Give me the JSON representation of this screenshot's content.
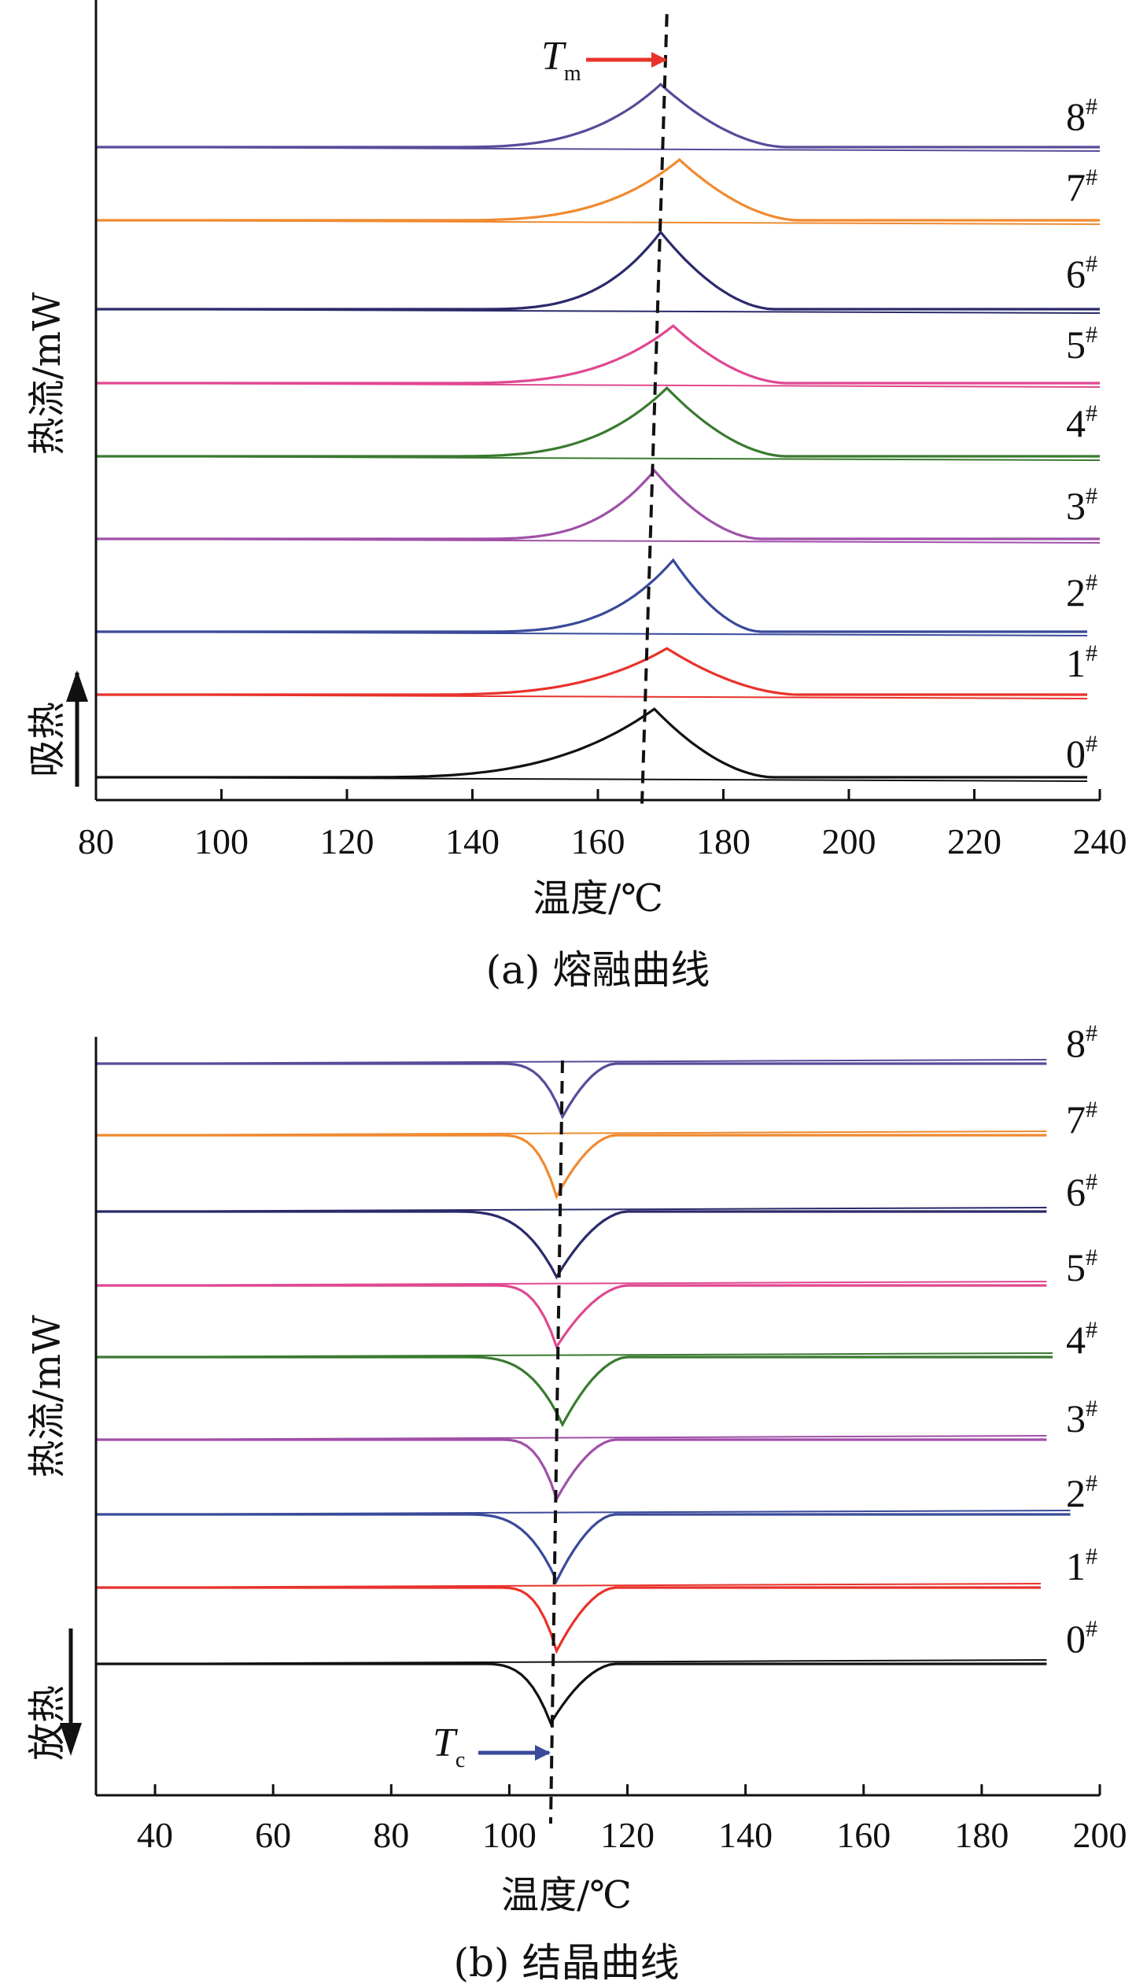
{
  "chart_data": [
    {
      "id": "a",
      "type": "line",
      "caption": "(a) 熔融曲线",
      "xlabel": "温度/℃",
      "ylabel": "热流/mW",
      "direction_label": "吸热",
      "direction": "up",
      "xlim": [
        80,
        240
      ],
      "xticks": [
        80,
        100,
        120,
        140,
        160,
        180,
        200,
        220,
        240
      ],
      "marker": {
        "symbol": "T",
        "sub": "m",
        "arrow_color": "#e8322b"
      },
      "series": [
        {
          "name": "0",
          "sup": "#",
          "color": "#111111",
          "peak_x": 169,
          "onset_x": 120,
          "end_x": 188,
          "height": 0.62,
          "x_end": 238
        },
        {
          "name": "1",
          "sup": "#",
          "color": "#e8322b",
          "peak_x": 171,
          "onset_x": 130,
          "end_x": 192,
          "height": 0.42,
          "x_end": 238
        },
        {
          "name": "2",
          "sup": "#",
          "color": "#3a4a9a",
          "peak_x": 172,
          "onset_x": 140,
          "end_x": 186,
          "height": 0.65,
          "x_end": 238
        },
        {
          "name": "3",
          "sup": "#",
          "color": "#a050a8",
          "peak_x": 169,
          "onset_x": 140,
          "end_x": 186,
          "height": 0.62,
          "x_end": 240
        },
        {
          "name": "4",
          "sup": "#",
          "color": "#3a7a30",
          "peak_x": 171,
          "onset_x": 135,
          "end_x": 190,
          "height": 0.62,
          "x_end": 240
        },
        {
          "name": "5",
          "sup": "#",
          "color": "#e04890",
          "peak_x": 172,
          "onset_x": 135,
          "end_x": 190,
          "height": 0.52,
          "x_end": 240
        },
        {
          "name": "6",
          "sup": "#",
          "color": "#2a2a6a",
          "peak_x": 170,
          "onset_x": 140,
          "end_x": 188,
          "height": 0.7,
          "x_end": 240
        },
        {
          "name": "7",
          "sup": "#",
          "color": "#f08a30",
          "peak_x": 173,
          "onset_x": 135,
          "end_x": 192,
          "height": 0.55,
          "x_end": 240
        },
        {
          "name": "8",
          "sup": "#",
          "color": "#5a4a9a",
          "peak_x": 170,
          "onset_x": 135,
          "end_x": 190,
          "height": 0.57,
          "x_end": 240
        }
      ]
    },
    {
      "id": "b",
      "type": "line",
      "caption": "(b) 结晶曲线",
      "xlabel": "温度/℃",
      "ylabel": "热流/mW",
      "direction_label": "放热",
      "direction": "down",
      "xlim": [
        30,
        200
      ],
      "xticks": [
        40,
        60,
        80,
        100,
        120,
        140,
        160,
        180,
        200
      ],
      "marker": {
        "symbol": "T",
        "sub": "c",
        "arrow_color": "#3a4a9a"
      },
      "series": [
        {
          "name": "0",
          "sup": "#",
          "color": "#111111",
          "peak_x": 107,
          "onset_x": 95,
          "end_x": 118,
          "height": 0.58,
          "x_end": 191
        },
        {
          "name": "1",
          "sup": "#",
          "color": "#e8322b",
          "peak_x": 108,
          "onset_x": 98,
          "end_x": 118,
          "height": 0.62,
          "x_end": 190
        },
        {
          "name": "2",
          "sup": "#",
          "color": "#3a4a9a",
          "peak_x": 108,
          "onset_x": 92,
          "end_x": 118,
          "height": 0.65,
          "x_end": 195
        },
        {
          "name": "3",
          "sup": "#",
          "color": "#a050a8",
          "peak_x": 108,
          "onset_x": 98,
          "end_x": 118,
          "height": 0.58,
          "x_end": 191
        },
        {
          "name": "4",
          "sup": "#",
          "color": "#3a7a30",
          "peak_x": 109,
          "onset_x": 92,
          "end_x": 120,
          "height": 0.66,
          "x_end": 192
        },
        {
          "name": "5",
          "sup": "#",
          "color": "#e04890",
          "peak_x": 108,
          "onset_x": 97,
          "end_x": 120,
          "height": 0.6,
          "x_end": 191
        },
        {
          "name": "6",
          "sup": "#",
          "color": "#2a2a6a",
          "peak_x": 108,
          "onset_x": 90,
          "end_x": 120,
          "height": 0.64,
          "x_end": 191
        },
        {
          "name": "7",
          "sup": "#",
          "color": "#f08a30",
          "peak_x": 108,
          "onset_x": 98,
          "end_x": 118,
          "height": 0.6,
          "x_end": 191
        },
        {
          "name": "8",
          "sup": "#",
          "color": "#5a4a9a",
          "peak_x": 109,
          "onset_x": 98,
          "end_x": 118,
          "height": 0.52,
          "x_end": 191
        }
      ]
    }
  ]
}
